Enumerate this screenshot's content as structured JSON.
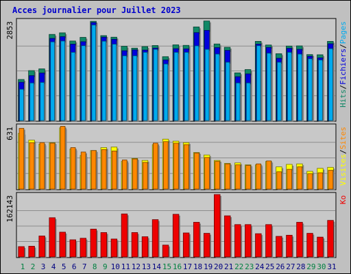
{
  "title": "Acces journalier pour Juillet 2023",
  "colors": {
    "background": "#c0c0c0",
    "plot_bg": "#c8c8c8",
    "title": "#0000cc",
    "pages": "#00aaee",
    "fichiers": "#0000dd",
    "hits": "#118866",
    "visites": "#ffff00",
    "sites": "#ff8800",
    "ko": "#ee0000",
    "weekday_label": "#000080",
    "weekend_label": "#008040"
  },
  "chart_data": [
    {
      "type": "bar",
      "panel": "hits-fichiers-pages",
      "ymax_label": "2853",
      "legend": [
        {
          "label": "Pages",
          "color_key": "pages"
        },
        {
          "label": "Fichiers",
          "color_key": "fichiers"
        },
        {
          "label": "Hits",
          "color_key": "hits"
        }
      ],
      "categories": [
        "1",
        "2",
        "3",
        "4",
        "5",
        "6",
        "7",
        "8",
        "9",
        "10",
        "11",
        "12",
        "13",
        "14",
        "15",
        "16",
        "17",
        "18",
        "19",
        "20",
        "21",
        "22",
        "23",
        "24",
        "25",
        "26",
        "27",
        "28",
        "29",
        "30",
        "31"
      ],
      "weekend_days": [
        "1",
        "2",
        "8",
        "9",
        "15",
        "16",
        "22",
        "23",
        "29",
        "30"
      ],
      "ylim": [
        0,
        2853
      ],
      "series": [
        {
          "name": "Hits",
          "values": [
            1180,
            1435,
            1485,
            2475,
            2520,
            2285,
            2390,
            2850,
            2440,
            2395,
            2135,
            2080,
            2125,
            2155,
            1835,
            2175,
            2160,
            2690,
            2860,
            2200,
            2105,
            1370,
            1465,
            2275,
            2170,
            1920,
            2140,
            2145,
            1895,
            1890,
            2275
          ]
        },
        {
          "name": "Fichiers",
          "values": [
            1100,
            1290,
            1365,
            2360,
            2410,
            2195,
            2265,
            2815,
            2395,
            2335,
            2005,
            2030,
            2025,
            2080,
            1740,
            2065,
            2060,
            2525,
            2590,
            2095,
            2015,
            1260,
            1340,
            2195,
            2100,
            1790,
            2075,
            2045,
            1845,
            1800,
            2205
          ]
        },
        {
          "name": "Pages",
          "values": [
            900,
            1080,
            1095,
            2260,
            2285,
            1960,
            2150,
            2745,
            2280,
            2195,
            1860,
            1860,
            1960,
            2045,
            1625,
            1960,
            1960,
            2145,
            2045,
            1910,
            1675,
            1080,
            1080,
            2150,
            1935,
            1675,
            1960,
            1910,
            1775,
            1740,
            2065
          ]
        }
      ]
    },
    {
      "type": "bar",
      "panel": "visites-sites",
      "ymax_label": "631",
      "legend": [
        {
          "label": "Sites",
          "color_key": "sites"
        },
        {
          "label": "Visites",
          "color_key": "visites"
        }
      ],
      "categories": [
        "1",
        "2",
        "3",
        "4",
        "5",
        "6",
        "7",
        "8",
        "9",
        "10",
        "11",
        "12",
        "13",
        "14",
        "15",
        "16",
        "17",
        "18",
        "19",
        "20",
        "21",
        "22",
        "23",
        "24",
        "25",
        "26",
        "27",
        "28",
        "29",
        "30",
        "31"
      ],
      "ylim": [
        0,
        631
      ],
      "series": [
        {
          "name": "Visites",
          "values": [
            565,
            495,
            455,
            470,
            620,
            405,
            340,
            390,
            420,
            425,
            280,
            310,
            290,
            450,
            505,
            485,
            470,
            370,
            345,
            290,
            260,
            265,
            245,
            245,
            280,
            225,
            250,
            255,
            180,
            210,
            220
          ]
        },
        {
          "name": "Sites",
          "values": [
            615,
            470,
            470,
            465,
            635,
            420,
            375,
            390,
            400,
            385,
            295,
            305,
            270,
            465,
            480,
            465,
            450,
            365,
            320,
            280,
            255,
            245,
            240,
            255,
            285,
            175,
            200,
            225,
            155,
            165,
            190
          ]
        }
      ]
    },
    {
      "type": "bar",
      "panel": "ko",
      "ymax_label": "162143",
      "legend": [
        {
          "label": "Ko",
          "color_key": "ko"
        }
      ],
      "categories": [
        "1",
        "2",
        "3",
        "4",
        "5",
        "6",
        "7",
        "8",
        "9",
        "10",
        "11",
        "12",
        "13",
        "14",
        "15",
        "16",
        "17",
        "18",
        "19",
        "20",
        "21",
        "22",
        "23",
        "24",
        "25",
        "26",
        "27",
        "28",
        "29",
        "30",
        "31"
      ],
      "ylim": [
        0,
        162143
      ],
      "series": [
        {
          "name": "Ko",
          "values": [
            27000,
            28000,
            55000,
            103000,
            65000,
            45000,
            49000,
            73000,
            64000,
            47000,
            113000,
            64000,
            53000,
            98000,
            31000,
            112000,
            63000,
            91000,
            62000,
            164000,
            108000,
            85000,
            85000,
            61000,
            85000,
            54000,
            57000,
            91000,
            62000,
            52000,
            96000
          ]
        }
      ]
    }
  ]
}
